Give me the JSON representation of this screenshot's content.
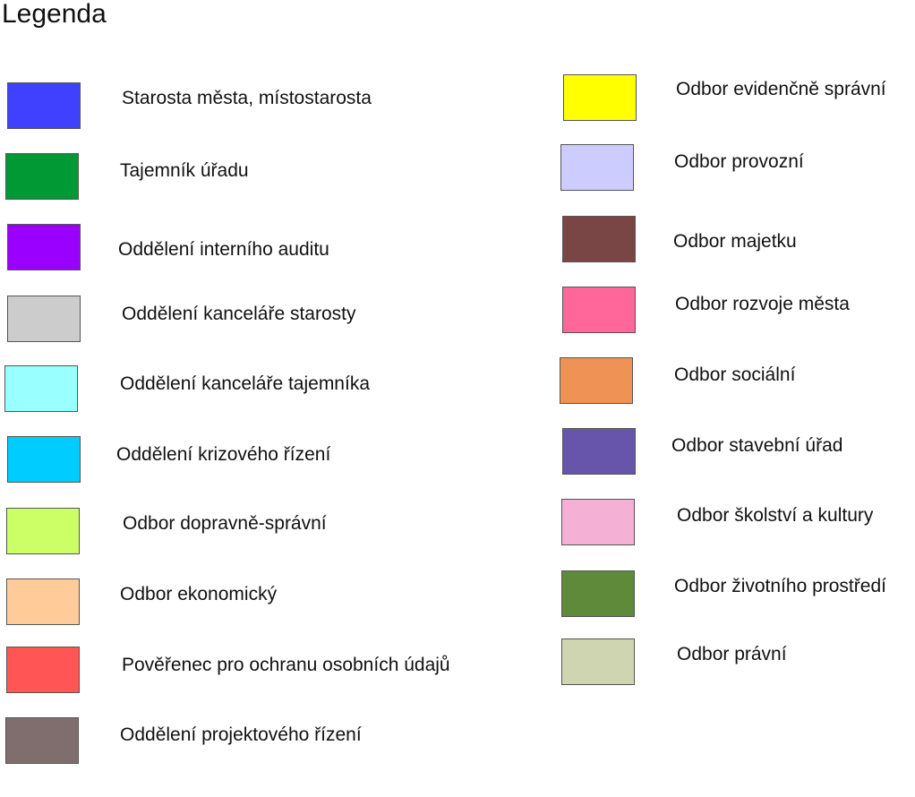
{
  "title": "Legenda",
  "left_items": [
    {
      "label": "Starosta města, místostarosta",
      "color": "#4040ff"
    },
    {
      "label": "Tajemník úřadu",
      "color": "#009933"
    },
    {
      "label": "Oddělení interního auditu",
      "color": "#9900ff"
    },
    {
      "label": "Oddělení kanceláře starosty",
      "color": "#cccccc"
    },
    {
      "label": "Oddělení kanceláře tajemníka",
      "color": "#99ffff"
    },
    {
      "label": "Oddělení krizového řízení",
      "color": "#00ccff"
    },
    {
      "label": "Odbor dopravně-správní",
      "color": "#ccff66"
    },
    {
      "label": "Odbor ekonomický",
      "color": "#ffcc99"
    },
    {
      "label": "Pověřenec pro ochranu osobních údajů",
      "color": "#ff5555"
    },
    {
      "label": "Oddělení projektového řízení",
      "color": "#806e6e"
    }
  ],
  "right_items": [
    {
      "label": "Odbor evidenčně správní",
      "color": "#ffff00"
    },
    {
      "label": "Odbor provozní",
      "color": "#ccccff"
    },
    {
      "label": "Odbor majetku",
      "color": "#7a4545"
    },
    {
      "label": "Odbor rozvoje města",
      "color": "#ff6699"
    },
    {
      "label": "Odbor sociální",
      "color": "#ee9255"
    },
    {
      "label": "Odbor stavební úřad",
      "color": "#6655aa"
    },
    {
      "label": "Odbor školství a kultury",
      "color": "#f5b0d5"
    },
    {
      "label": "Odbor životního prostředí",
      "color": "#5f8a3a"
    },
    {
      "label": "Odbor právní",
      "color": "#cfd5b0"
    }
  ]
}
